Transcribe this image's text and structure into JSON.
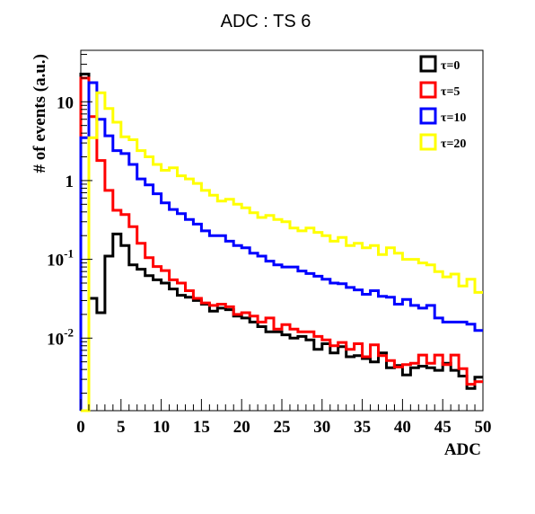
{
  "chart_data": {
    "type": "line",
    "step": true,
    "title": "ADC : TS 6",
    "xlabel": "ADC",
    "ylabel": "# of events (a.u.)",
    "xlim": [
      0,
      50
    ],
    "ylim": [
      0.0012,
      45
    ],
    "ylog": true,
    "grid": false,
    "legend_position": "top-right",
    "x_ticks": [
      {
        "value": 0,
        "label": "0"
      },
      {
        "value": 5,
        "label": "5"
      },
      {
        "value": 10,
        "label": "10"
      },
      {
        "value": 15,
        "label": "15"
      },
      {
        "value": 20,
        "label": "20"
      },
      {
        "value": 25,
        "label": "25"
      },
      {
        "value": 30,
        "label": "30"
      },
      {
        "value": 35,
        "label": "35"
      },
      {
        "value": 40,
        "label": "40"
      },
      {
        "value": 45,
        "label": "45"
      },
      {
        "value": 50,
        "label": "50"
      }
    ],
    "y_ticks": [
      {
        "value": 10,
        "base": "10",
        "exp": ""
      },
      {
        "value": 1,
        "base": "1",
        "exp": ""
      },
      {
        "value": 0.1,
        "base": "10",
        "exp": "-1"
      },
      {
        "value": 0.01,
        "base": "10",
        "exp": "-2"
      }
    ],
    "series": [
      {
        "name": "τ=0",
        "color": "#000000",
        "values": [
          22.5,
          0.032,
          0.021,
          0.11,
          0.21,
          0.15,
          0.085,
          0.075,
          0.062,
          0.055,
          0.05,
          0.042,
          0.035,
          0.033,
          0.03,
          0.027,
          0.022,
          0.024,
          0.023,
          0.019,
          0.018,
          0.016,
          0.014,
          0.012,
          0.012,
          0.011,
          0.01,
          0.0105,
          0.0095,
          0.0072,
          0.0085,
          0.0065,
          0.0078,
          0.0058,
          0.006,
          0.0055,
          0.005,
          0.0065,
          0.0042,
          0.0045,
          0.0034,
          0.0042,
          0.0044,
          0.0042,
          0.0039,
          0.0048,
          0.0039,
          0.0033,
          0.0023,
          0.0032
        ]
      },
      {
        "name": "τ=5",
        "color": "#ff0000",
        "values": [
          20,
          6.5,
          1.8,
          0.75,
          0.42,
          0.37,
          0.26,
          0.16,
          0.105,
          0.081,
          0.072,
          0.055,
          0.05,
          0.04,
          0.032,
          0.028,
          0.026,
          0.027,
          0.025,
          0.02,
          0.021,
          0.019,
          0.016,
          0.018,
          0.013,
          0.0148,
          0.013,
          0.012,
          0.012,
          0.0105,
          0.0095,
          0.008,
          0.0088,
          0.0072,
          0.0085,
          0.0058,
          0.0082,
          0.006,
          0.0052,
          0.0043,
          0.0046,
          0.0048,
          0.0061,
          0.0048,
          0.0061,
          0.0046,
          0.0061,
          0.0041,
          0.0026,
          0.0028
        ]
      },
      {
        "name": "τ=10",
        "color": "#0000ff",
        "values": [
          3.5,
          17.5,
          6,
          3.7,
          2.4,
          2.2,
          1.6,
          1.05,
          0.88,
          0.68,
          0.52,
          0.43,
          0.38,
          0.32,
          0.28,
          0.23,
          0.2,
          0.2,
          0.17,
          0.15,
          0.14,
          0.12,
          0.11,
          0.095,
          0.085,
          0.08,
          0.08,
          0.071,
          0.066,
          0.061,
          0.056,
          0.05,
          0.049,
          0.044,
          0.041,
          0.036,
          0.04,
          0.034,
          0.033,
          0.027,
          0.031,
          0.026,
          0.024,
          0.026,
          0.018,
          0.016,
          0.016,
          0.016,
          0.015,
          0.0125
        ]
      },
      {
        "name": "τ=20",
        "color": "#ffff00",
        "values": [
          0.0012,
          3.5,
          13,
          8.2,
          5.5,
          3.6,
          3.3,
          2.4,
          2,
          1.6,
          1.35,
          1.45,
          1.15,
          1.05,
          0.92,
          0.75,
          0.65,
          0.55,
          0.58,
          0.5,
          0.45,
          0.39,
          0.34,
          0.36,
          0.32,
          0.3,
          0.25,
          0.23,
          0.25,
          0.22,
          0.2,
          0.17,
          0.19,
          0.15,
          0.16,
          0.14,
          0.15,
          0.115,
          0.14,
          0.12,
          0.1,
          0.1,
          0.09,
          0.085,
          0.07,
          0.06,
          0.065,
          0.046,
          0.056,
          0.038
        ]
      }
    ]
  }
}
